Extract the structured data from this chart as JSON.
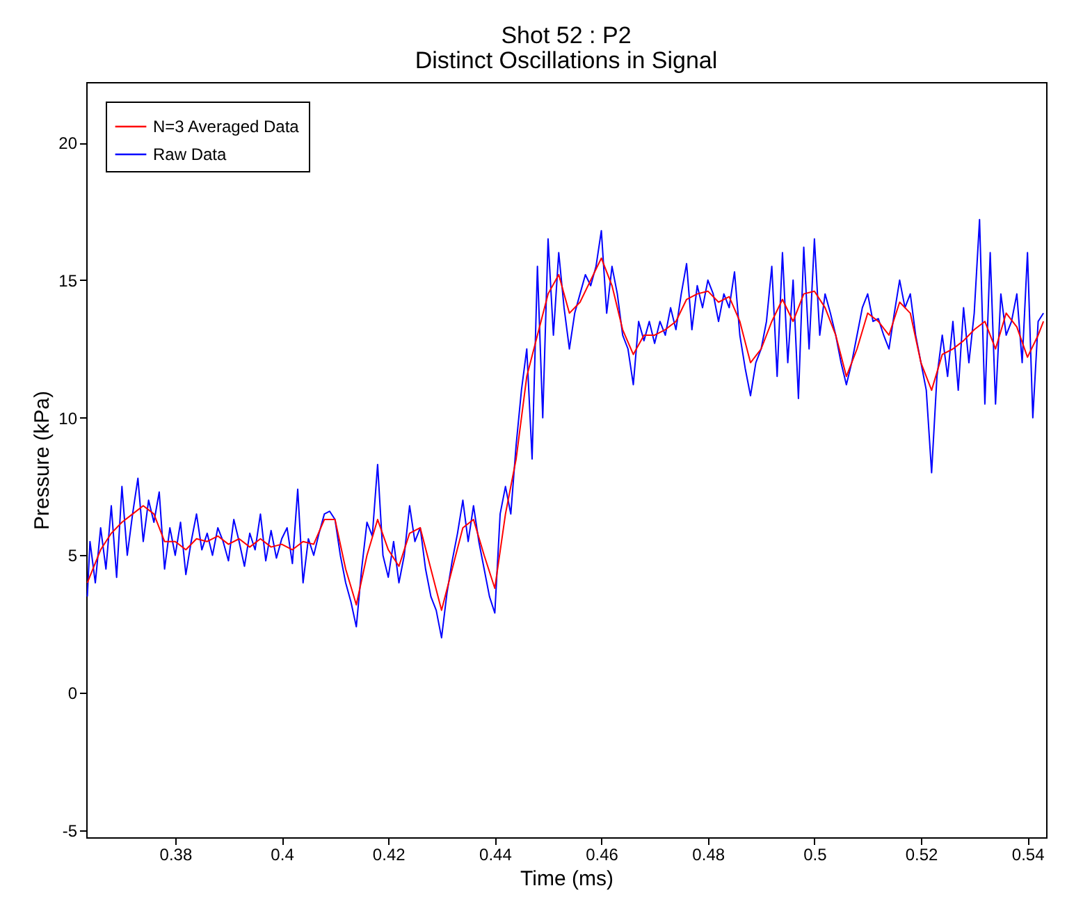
{
  "chart_data": {
    "type": "line",
    "title": "Shot 52 : P2",
    "subtitle": "Distinct Oscillations in Signal",
    "xlabel": "Time (ms)",
    "ylabel": "Pressure (kPa)",
    "xlim": [
      0.3633,
      0.5435
    ],
    "ylim": [
      -5.25,
      22.2
    ],
    "xticks": [
      0.38,
      0.4,
      0.42,
      0.44,
      0.46,
      0.48,
      0.5,
      0.52,
      0.54
    ],
    "yticks": [
      -5,
      0,
      5,
      10,
      15,
      20
    ],
    "grid": false,
    "legend": "top left",
    "line_style": "solid",
    "series": [
      {
        "name": "N=3 Averaged Data",
        "color": "#ff0000",
        "x": [
          0.3635,
          0.366,
          0.368,
          0.37,
          0.372,
          0.374,
          0.376,
          0.378,
          0.38,
          0.382,
          0.384,
          0.386,
          0.388,
          0.39,
          0.392,
          0.394,
          0.396,
          0.398,
          0.4,
          0.402,
          0.404,
          0.406,
          0.408,
          0.41,
          0.412,
          0.414,
          0.416,
          0.418,
          0.42,
          0.422,
          0.424,
          0.426,
          0.428,
          0.43,
          0.432,
          0.434,
          0.436,
          0.438,
          0.44,
          0.442,
          0.444,
          0.446,
          0.448,
          0.45,
          0.452,
          0.454,
          0.456,
          0.458,
          0.46,
          0.462,
          0.464,
          0.466,
          0.468,
          0.47,
          0.472,
          0.474,
          0.476,
          0.478,
          0.48,
          0.482,
          0.484,
          0.486,
          0.488,
          0.49,
          0.492,
          0.494,
          0.496,
          0.498,
          0.5,
          0.502,
          0.504,
          0.506,
          0.508,
          0.51,
          0.512,
          0.514,
          0.516,
          0.518,
          0.52,
          0.522,
          0.524,
          0.526,
          0.528,
          0.53,
          0.532,
          0.534,
          0.536,
          0.538,
          0.54,
          0.542,
          0.543
        ],
        "values": [
          4.0,
          5.2,
          5.8,
          6.2,
          6.5,
          6.8,
          6.5,
          5.5,
          5.5,
          5.2,
          5.6,
          5.5,
          5.7,
          5.4,
          5.6,
          5.3,
          5.6,
          5.3,
          5.4,
          5.2,
          5.5,
          5.4,
          6.3,
          6.3,
          4.5,
          3.2,
          5.0,
          6.3,
          5.2,
          4.6,
          5.8,
          6.0,
          4.5,
          3.0,
          4.5,
          6.0,
          6.3,
          5.0,
          3.8,
          6.5,
          8.5,
          11.5,
          13.0,
          14.5,
          15.2,
          13.8,
          14.2,
          15.0,
          15.8,
          14.8,
          13.2,
          12.3,
          13.0,
          13.0,
          13.2,
          13.5,
          14.3,
          14.5,
          14.6,
          14.2,
          14.4,
          13.5,
          12.0,
          12.5,
          13.5,
          14.3,
          13.5,
          14.5,
          14.6,
          14.0,
          13.0,
          11.5,
          12.5,
          13.8,
          13.5,
          13.0,
          14.2,
          13.8,
          12.0,
          11.0,
          12.3,
          12.5,
          12.8,
          13.2,
          13.5,
          12.5,
          13.8,
          13.3,
          12.2,
          13.0,
          13.5
        ]
      },
      {
        "name": "Raw Data",
        "color": "#0000ff",
        "x": [
          0.3635,
          0.364,
          0.365,
          0.366,
          0.367,
          0.368,
          0.369,
          0.37,
          0.371,
          0.372,
          0.373,
          0.374,
          0.375,
          0.376,
          0.377,
          0.378,
          0.379,
          0.38,
          0.381,
          0.382,
          0.383,
          0.384,
          0.385,
          0.386,
          0.387,
          0.388,
          0.389,
          0.39,
          0.391,
          0.392,
          0.393,
          0.394,
          0.395,
          0.396,
          0.397,
          0.398,
          0.399,
          0.4,
          0.401,
          0.402,
          0.403,
          0.404,
          0.405,
          0.406,
          0.407,
          0.408,
          0.409,
          0.41,
          0.411,
          0.412,
          0.413,
          0.414,
          0.415,
          0.416,
          0.417,
          0.418,
          0.419,
          0.42,
          0.421,
          0.422,
          0.423,
          0.424,
          0.425,
          0.426,
          0.427,
          0.428,
          0.429,
          0.43,
          0.431,
          0.432,
          0.433,
          0.434,
          0.435,
          0.436,
          0.437,
          0.438,
          0.439,
          0.44,
          0.441,
          0.442,
          0.443,
          0.444,
          0.445,
          0.446,
          0.447,
          0.448,
          0.449,
          0.45,
          0.451,
          0.452,
          0.453,
          0.454,
          0.455,
          0.456,
          0.457,
          0.458,
          0.459,
          0.46,
          0.461,
          0.462,
          0.463,
          0.464,
          0.465,
          0.466,
          0.467,
          0.468,
          0.469,
          0.47,
          0.471,
          0.472,
          0.473,
          0.474,
          0.475,
          0.476,
          0.477,
          0.478,
          0.479,
          0.48,
          0.481,
          0.482,
          0.483,
          0.484,
          0.485,
          0.486,
          0.487,
          0.488,
          0.489,
          0.49,
          0.491,
          0.492,
          0.493,
          0.494,
          0.495,
          0.496,
          0.497,
          0.498,
          0.499,
          0.5,
          0.501,
          0.502,
          0.503,
          0.504,
          0.505,
          0.506,
          0.507,
          0.508,
          0.509,
          0.51,
          0.511,
          0.512,
          0.513,
          0.514,
          0.515,
          0.516,
          0.517,
          0.518,
          0.519,
          0.52,
          0.521,
          0.522,
          0.523,
          0.524,
          0.525,
          0.526,
          0.527,
          0.528,
          0.529,
          0.53,
          0.531,
          0.532,
          0.533,
          0.534,
          0.535,
          0.536,
          0.537,
          0.538,
          0.539,
          0.54,
          0.541,
          0.542,
          0.543
        ],
        "values": [
          3.5,
          5.5,
          4.0,
          6.0,
          4.5,
          6.8,
          4.2,
          7.5,
          5.0,
          6.5,
          7.8,
          5.5,
          7.0,
          6.2,
          7.3,
          4.5,
          6.0,
          5.0,
          6.2,
          4.3,
          5.5,
          6.5,
          5.2,
          5.8,
          5.0,
          6.0,
          5.5,
          4.8,
          6.3,
          5.5,
          4.6,
          5.8,
          5.2,
          6.5,
          4.8,
          5.9,
          4.9,
          5.6,
          6.0,
          4.7,
          7.4,
          4.0,
          5.6,
          5.0,
          5.8,
          6.5,
          6.6,
          6.3,
          5.0,
          4.0,
          3.3,
          2.4,
          4.5,
          6.2,
          5.7,
          8.3,
          5.0,
          4.2,
          5.5,
          4.0,
          5.0,
          6.8,
          5.5,
          6.0,
          4.5,
          3.5,
          3.0,
          2.0,
          3.6,
          4.8,
          5.8,
          7.0,
          5.5,
          6.8,
          5.5,
          4.5,
          3.5,
          2.9,
          6.5,
          7.5,
          6.5,
          9.0,
          11.0,
          12.5,
          8.5,
          15.5,
          10.0,
          16.5,
          13.0,
          16.0,
          14.0,
          12.5,
          13.8,
          14.5,
          15.2,
          14.8,
          15.5,
          16.8,
          13.8,
          15.5,
          14.5,
          13.0,
          12.5,
          11.2,
          13.5,
          12.8,
          13.5,
          12.7,
          13.5,
          13.0,
          14.0,
          13.2,
          14.5,
          15.6,
          13.2,
          14.8,
          14.0,
          15.0,
          14.5,
          13.5,
          14.5,
          14.0,
          15.3,
          13.0,
          11.8,
          10.8,
          12.0,
          12.5,
          13.5,
          15.5,
          11.5,
          16.0,
          12.0,
          15.0,
          10.7,
          16.2,
          12.5,
          16.5,
          13.0,
          14.5,
          13.8,
          13.0,
          12.0,
          11.2,
          12.0,
          13.0,
          14.0,
          14.5,
          13.5,
          13.6,
          13.0,
          12.5,
          13.8,
          15.0,
          14.0,
          14.5,
          13.0,
          12.0,
          11.0,
          8.0,
          11.5,
          13.0,
          11.5,
          13.5,
          11.0,
          14.0,
          12.0,
          13.8,
          17.2,
          10.5,
          16.0,
          10.5,
          14.5,
          13.0,
          13.5,
          14.5,
          12.0,
          16.0,
          10.0,
          13.5,
          13.8
        ]
      }
    ]
  }
}
